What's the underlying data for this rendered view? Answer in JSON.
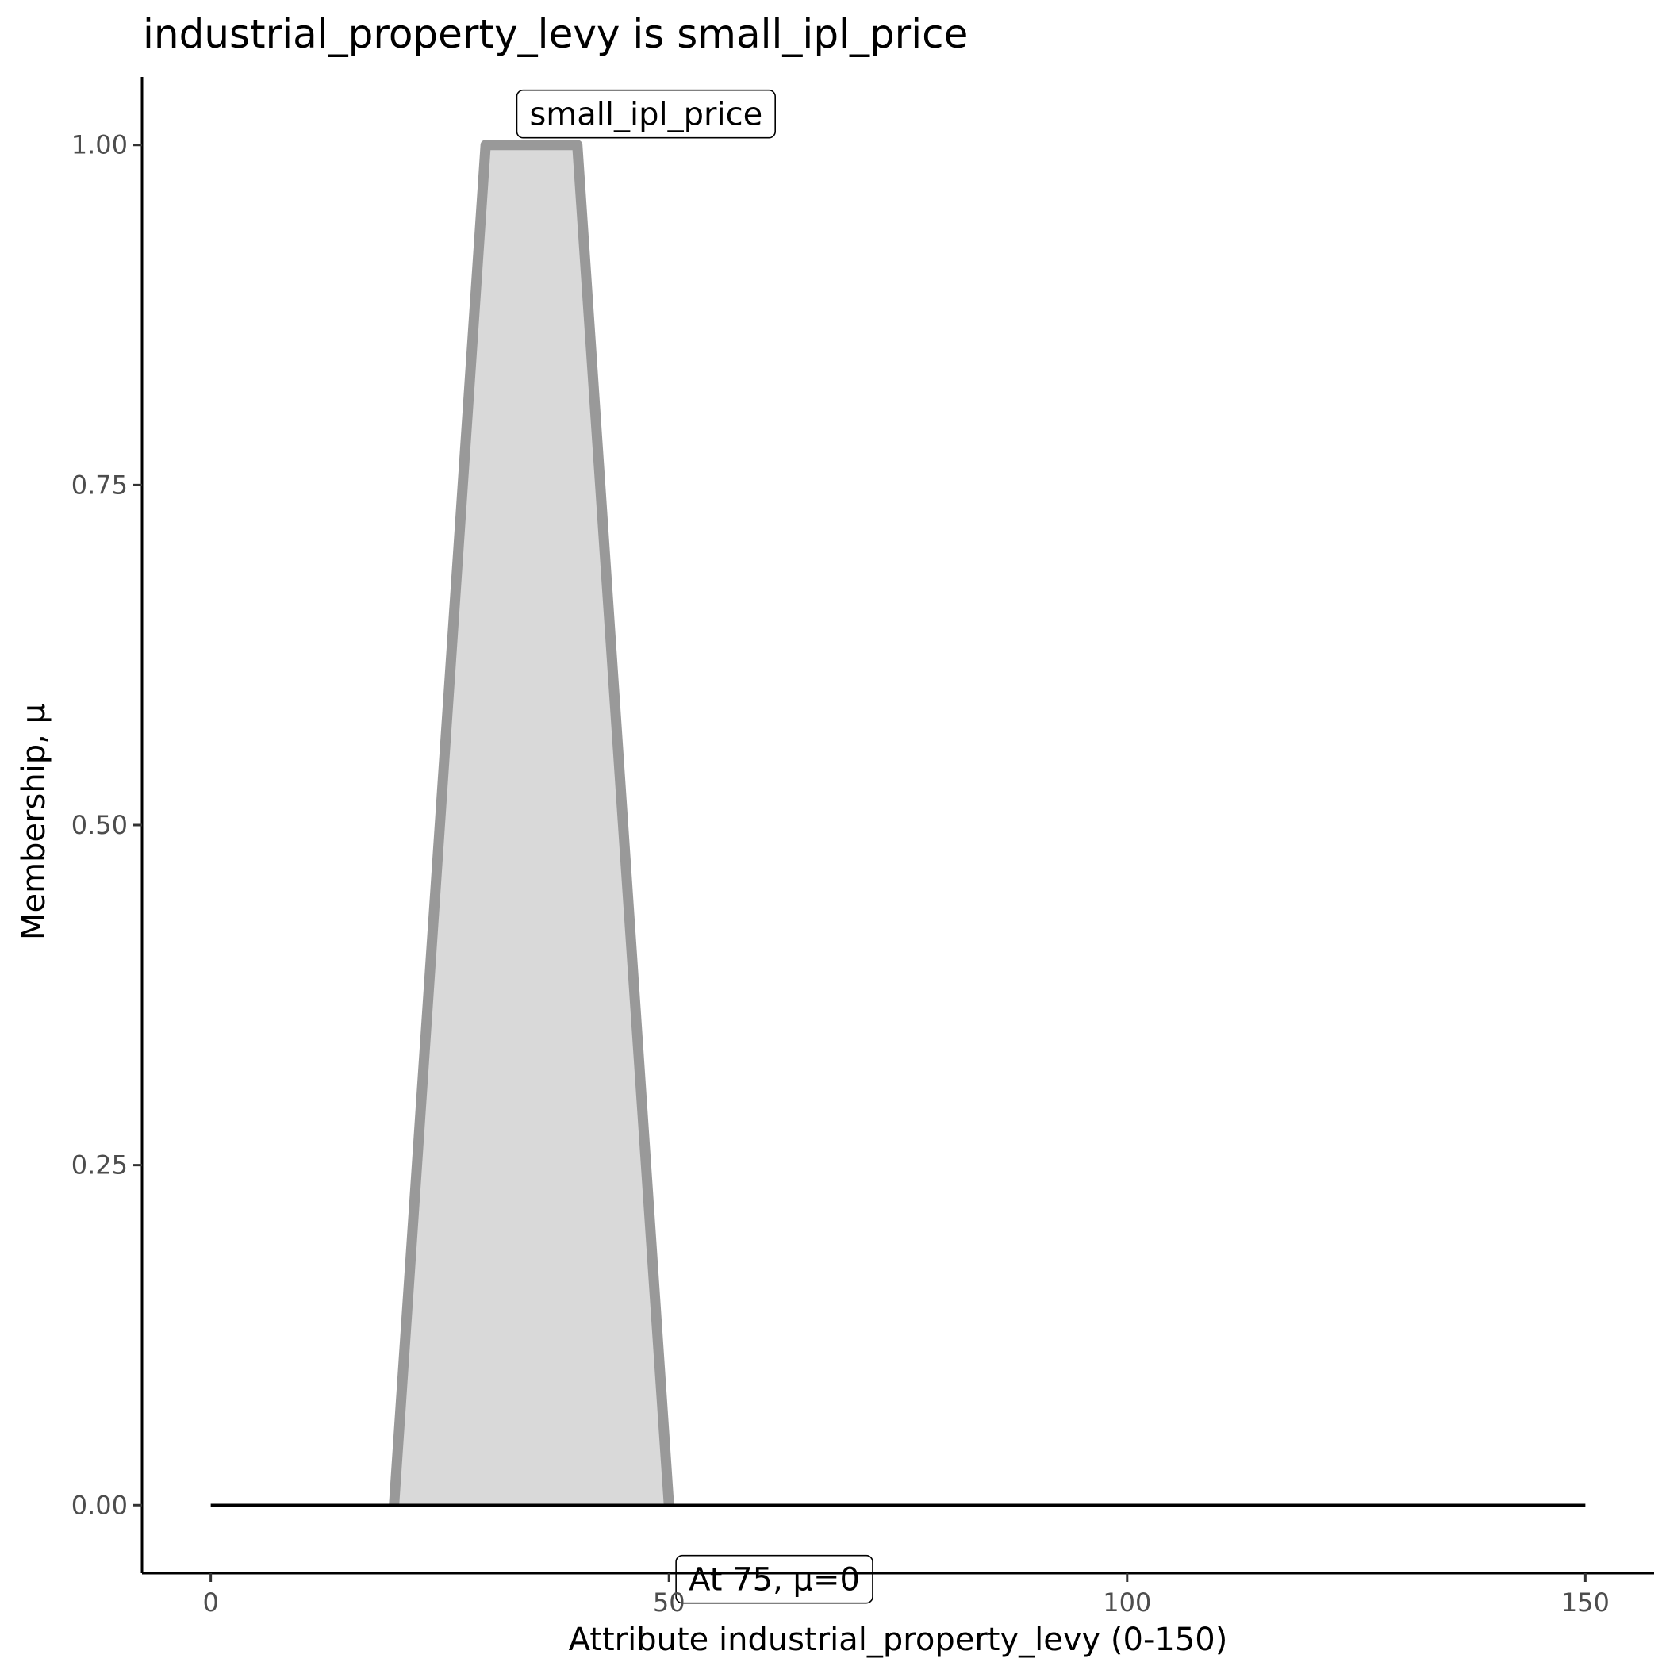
{
  "chart_data": {
    "type": "area",
    "title": "industrial_property_levy is small_ipl_price",
    "xlabel": "Attribute industrial_property_levy (0-150)",
    "ylabel": "Membership, μ",
    "xlim": [
      -7.5,
      157.5
    ],
    "ylim": [
      -0.05,
      1.05
    ],
    "x_ticks": [
      0,
      50,
      100,
      150
    ],
    "x_tick_labels": [
      "0",
      "50",
      "100",
      "150"
    ],
    "y_ticks": [
      0,
      0.25,
      0.5,
      0.75,
      1.0
    ],
    "y_tick_labels": [
      "0.00",
      "0.25",
      "0.50",
      "0.75",
      "1.00"
    ],
    "grid": false,
    "legend": "none",
    "series": [
      {
        "name": "small_ipl_price",
        "x": [
          20,
          30,
          40,
          50
        ],
        "y": [
          0,
          1,
          1,
          0
        ],
        "fill_color": "#d9d9d9",
        "line_color": "#999999"
      }
    ],
    "baseline": {
      "x": [
        0,
        150
      ],
      "y": 0,
      "color": "#000000"
    },
    "annotations": [
      {
        "text": "small_ipl_price",
        "x": 47.5,
        "y": 1.0,
        "position": "above"
      },
      {
        "text": "At 75, μ=0",
        "x": 61.5,
        "y": -0.03,
        "position": "below"
      }
    ]
  }
}
